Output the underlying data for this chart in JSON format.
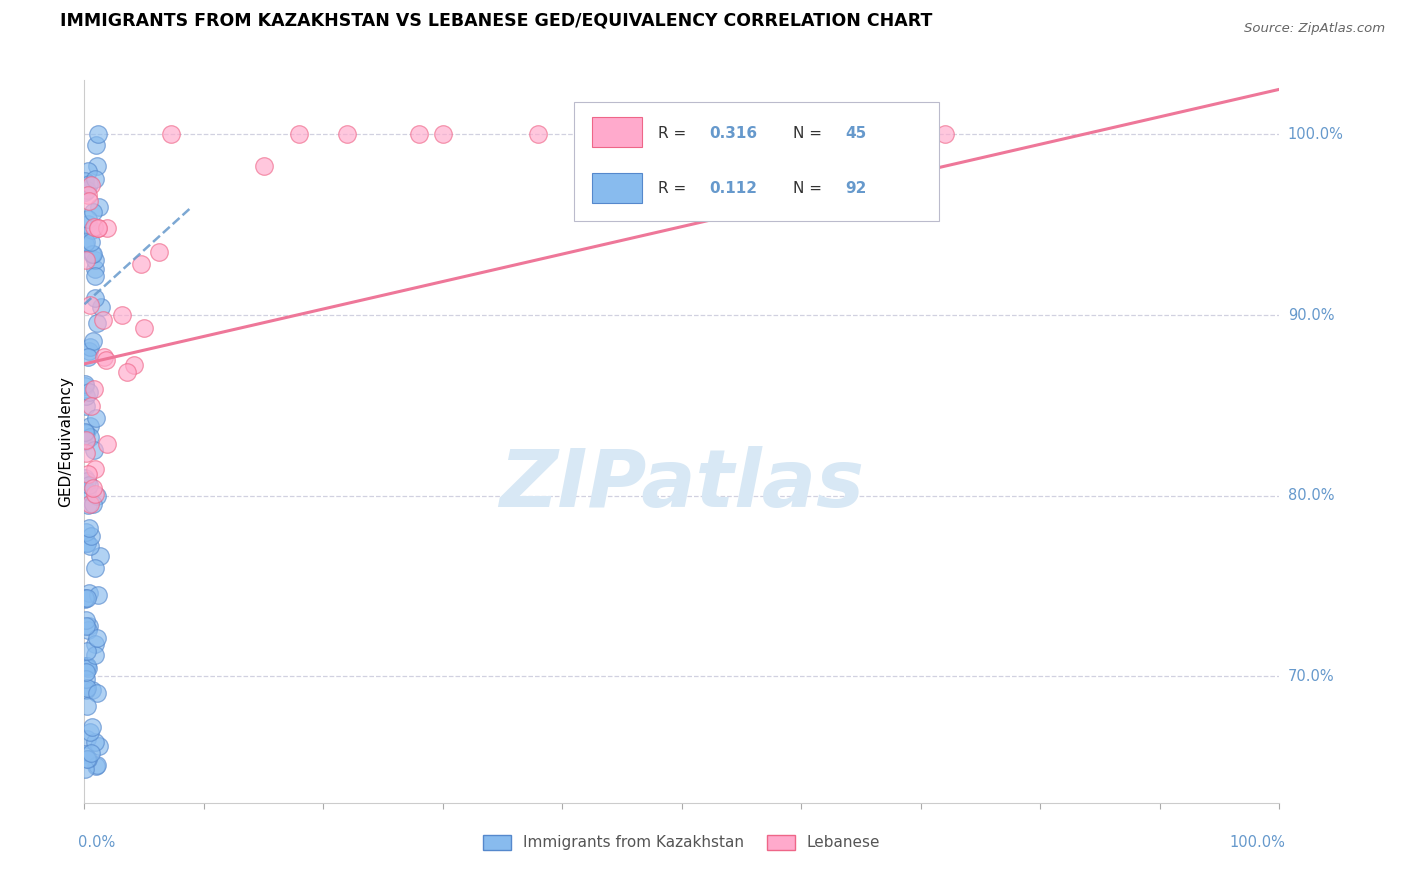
{
  "title": "IMMIGRANTS FROM KAZAKHSTAN VS LEBANESE GED/EQUIVALENCY CORRELATION CHART",
  "source": "Source: ZipAtlas.com",
  "ylabel": "GED/Equivalency",
  "legend_label1": "Immigrants from Kazakhstan",
  "legend_label2": "Lebanese",
  "r1": "0.112",
  "n1": "92",
  "r2": "0.316",
  "n2": "45",
  "blue_color": "#88BBEE",
  "pink_color": "#FFAACC",
  "blue_edge_color": "#5588CC",
  "pink_edge_color": "#EE6688",
  "blue_line_color": "#6699CC",
  "pink_line_color": "#EE7799",
  "grid_color": "#CCCCDD",
  "right_label_color": "#6699CC",
  "watermark_color": "#D8E8F5",
  "ylim_min": 0.63,
  "ylim_max": 1.03,
  "xlim_min": 0.0,
  "xlim_max": 1.0,
  "ylabel_right_labels": [
    "100.0%",
    "90.0%",
    "80.0%",
    "70.0%"
  ],
  "ylabel_right_values": [
    1.0,
    0.9,
    0.8,
    0.7
  ],
  "blue_line_x": [
    0.0,
    0.09
  ],
  "blue_line_y": [
    0.906,
    0.96
  ],
  "pink_line_x": [
    0.0,
    1.0
  ],
  "pink_line_y": [
    0.873,
    1.025
  ]
}
